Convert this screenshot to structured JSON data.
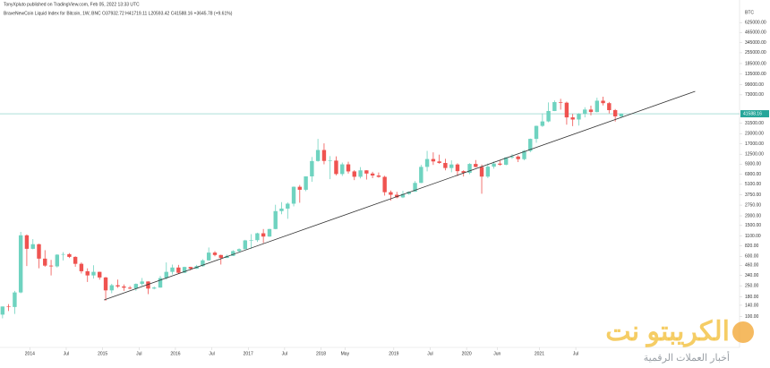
{
  "header": {
    "author_line": "TonyXpluto published on TradingView.com, Feb 05, 2022 13:33 UTC",
    "symbol_line": "BraveNewCoin Liquid Index for Bitcoin, 1W, BNC  O37932.72  H41719.11  L20593.42  C41588.16  +3645.78 (+9.61%)"
  },
  "watermark": {
    "title": "الكريبتو نت",
    "subtitle": "أخبار العملات الرقمية"
  },
  "chart_data": {
    "type": "candlestick",
    "currency": "BTC",
    "log": true,
    "grid": false,
    "up_color": "#6fd3c0",
    "down_color": "#ef5350",
    "last_price": 41588.16,
    "last_price_color": "#26a69a",
    "xlim": [
      2013.59,
      2023.75
    ],
    "ylim": [
      40,
      1100000
    ],
    "xticks": [
      {
        "value": 2014,
        "label": "2014"
      },
      {
        "value": 2014.5,
        "label": "Jul"
      },
      {
        "value": 2015,
        "label": "2015"
      },
      {
        "value": 2015.5,
        "label": "Jul"
      },
      {
        "value": 2016,
        "label": "2016"
      },
      {
        "value": 2016.5,
        "label": "Jul"
      },
      {
        "value": 2017,
        "label": "2017"
      },
      {
        "value": 2017.5,
        "label": "Jul"
      },
      {
        "value": 2018,
        "label": "2018"
      },
      {
        "value": 2018.33,
        "label": "May"
      },
      {
        "value": 2019,
        "label": "2019"
      },
      {
        "value": 2019.5,
        "label": "Jul"
      },
      {
        "value": 2020,
        "label": "2020"
      },
      {
        "value": 2020.42,
        "label": "Jun"
      },
      {
        "value": 2021,
        "label": "2021"
      },
      {
        "value": 2021.5,
        "label": "Jul"
      }
    ],
    "yticks": [
      {
        "value": 625000,
        "label": "625000.00"
      },
      {
        "value": 465000,
        "label": "465000.00"
      },
      {
        "value": 345000,
        "label": "345000.00"
      },
      {
        "value": 255000,
        "label": "255000.00"
      },
      {
        "value": 185000,
        "label": "185000.00"
      },
      {
        "value": 135000,
        "label": "135000.00"
      },
      {
        "value": 99000,
        "label": "99000.00"
      },
      {
        "value": 73000,
        "label": "73000.00"
      },
      {
        "value": 31500,
        "label": "31500.00"
      },
      {
        "value": 23000,
        "label": "23000.00"
      },
      {
        "value": 17000,
        "label": "17000.00"
      },
      {
        "value": 12500,
        "label": "12500.00"
      },
      {
        "value": 9300,
        "label": "9300.00"
      },
      {
        "value": 6900,
        "label": "6900.00"
      },
      {
        "value": 5100,
        "label": "5100.00"
      },
      {
        "value": 3750,
        "label": "3750.00"
      },
      {
        "value": 2750,
        "label": "2750.00"
      },
      {
        "value": 2000,
        "label": "2000.00"
      },
      {
        "value": 1500,
        "label": "1500.00"
      },
      {
        "value": 1100,
        "label": "1100.00"
      },
      {
        "value": 820,
        "label": "820.00"
      },
      {
        "value": 600,
        "label": "600.00"
      },
      {
        "value": 460,
        "label": "460.00"
      },
      {
        "value": 340,
        "label": "340.00"
      },
      {
        "value": 250,
        "label": "250.00"
      },
      {
        "value": 180,
        "label": "180.00"
      },
      {
        "value": 140,
        "label": "140.00"
      },
      {
        "value": 100,
        "label": "100.00"
      }
    ],
    "trendline": {
      "x": [
        2015.02,
        2023.14
      ],
      "y": [
        164,
        81000
      ],
      "color": "#333333"
    },
    "candles": {
      "x": [
        2013.625,
        2013.708,
        2013.792,
        2013.875,
        2013.958,
        2014.042,
        2014.125,
        2014.208,
        2014.292,
        2014.375,
        2014.458,
        2014.542,
        2014.625,
        2014.708,
        2014.792,
        2014.875,
        2014.958,
        2015.042,
        2015.125,
        2015.208,
        2015.292,
        2015.375,
        2015.458,
        2015.542,
        2015.625,
        2015.708,
        2015.792,
        2015.875,
        2015.958,
        2016.042,
        2016.125,
        2016.208,
        2016.292,
        2016.375,
        2016.458,
        2016.542,
        2016.625,
        2016.708,
        2016.792,
        2016.875,
        2016.958,
        2017.042,
        2017.125,
        2017.208,
        2017.292,
        2017.375,
        2017.458,
        2017.542,
        2017.625,
        2017.708,
        2017.792,
        2017.875,
        2017.958,
        2018.042,
        2018.125,
        2018.208,
        2018.292,
        2018.375,
        2018.458,
        2018.542,
        2018.625,
        2018.708,
        2018.792,
        2018.875,
        2018.958,
        2019.042,
        2019.125,
        2019.208,
        2019.292,
        2019.375,
        2019.458,
        2019.542,
        2019.625,
        2019.708,
        2019.792,
        2019.875,
        2019.958,
        2020.042,
        2020.125,
        2020.208,
        2020.292,
        2020.375,
        2020.458,
        2020.542,
        2020.625,
        2020.708,
        2020.792,
        2020.875,
        2020.958,
        2021.042,
        2021.125,
        2021.208,
        2021.292,
        2021.375,
        2021.458,
        2021.542,
        2021.625,
        2021.708,
        2021.792,
        2021.875,
        2021.958,
        2022.042,
        2022.125
      ],
      "open": [
        106,
        135,
        133,
        205,
        1120,
        750,
        860,
        560,
        455,
        445,
        630,
        640,
        590,
        480,
        385,
        340,
        378,
        320,
        218,
        254,
        245,
        236,
        230,
        264,
        284,
        230,
        237,
        314,
        378,
        430,
        368,
        437,
        416,
        448,
        532,
        670,
        624,
        573,
        608,
        700,
        742,
        963,
        970,
        1190,
        1080,
        1350,
        2300,
        2480,
        2870,
        4740,
        4340,
        6460,
        10200,
        14150,
        10230,
        10330,
        6930,
        9240,
        7490,
        6390,
        7730,
        7030,
        6630,
        6370,
        4040,
        3740,
        3460,
        3830,
        4100,
        5320,
        8570,
        10820,
        10080,
        9630,
        8290,
        9200,
        7550,
        7190,
        9350,
        8560,
        6420,
        8630,
        9450,
        9140,
        11350,
        11650,
        10780,
        13800,
        19700,
        28990,
        33110,
        45140,
        58800,
        57750,
        37330,
        35040,
        41460,
        47100,
        43790,
        61300,
        57000,
        46300,
        38480
      ],
      "high": [
        135,
        145,
        215,
        1240,
        1150,
        1000,
        870,
        720,
        540,
        640,
        680,
        660,
        600,
        500,
        420,
        460,
        380,
        325,
        265,
        300,
        260,
        248,
        268,
        315,
        285,
        245,
        335,
        500,
        470,
        465,
        440,
        440,
        465,
        550,
        780,
        700,
        630,
        630,
        720,
        760,
        980,
        1160,
        1210,
        1350,
        1360,
        2780,
        3000,
        2980,
        4780,
        5000,
        6460,
        11500,
        19700,
        17250,
        11800,
        11700,
        9750,
        10000,
        7770,
        8500,
        7750,
        7410,
        7250,
        6580,
        4250,
        4080,
        4210,
        4130,
        5620,
        9100,
        13800,
        13200,
        12330,
        10900,
        10400,
        9530,
        7750,
        9580,
        10500,
        9200,
        9460,
        10070,
        10380,
        11430,
        12470,
        12070,
        14100,
        19900,
        29300,
        41950,
        58350,
        61800,
        64800,
        59600,
        41300,
        42300,
        50500,
        52900,
        67000,
        69000,
        59100,
        47900,
        42100
      ],
      "low": [
        95,
        118,
        108,
        200,
        450,
        740,
        420,
        440,
        340,
        430,
        530,
        570,
        440,
        360,
        280,
        310,
        300,
        160,
        200,
        235,
        215,
        225,
        215,
        250,
        195,
        225,
        236,
        300,
        350,
        355,
        365,
        395,
        412,
        440,
        525,
        600,
        470,
        570,
        605,
        680,
        740,
        750,
        920,
        890,
        1070,
        1340,
        2100,
        1830,
        2650,
        2950,
        4160,
        5500,
        10000,
        9250,
        5950,
        6650,
        6550,
        7030,
        5780,
        6090,
        5880,
        6120,
        6200,
        3650,
        3150,
        3370,
        3390,
        3740,
        4080,
        5290,
        7500,
        9080,
        9400,
        7730,
        7300,
        6530,
        6430,
        6880,
        8450,
        3860,
        6160,
        8130,
        8900,
        8970,
        10880,
        9880,
        10430,
        13230,
        17600,
        28130,
        32300,
        45000,
        47000,
        30000,
        28800,
        29300,
        37330,
        39600,
        43300,
        53250,
        42000,
        32950,
        36600
      ],
      "close": [
        135,
        133,
        205,
        1120,
        750,
        860,
        560,
        455,
        445,
        630,
        640,
        590,
        480,
        385,
        340,
        378,
        320,
        218,
        254,
        245,
        236,
        230,
        264,
        284,
        230,
        237,
        314,
        378,
        430,
        368,
        437,
        416,
        448,
        532,
        670,
        624,
        573,
        608,
        700,
        742,
        963,
        970,
        1190,
        1080,
        1350,
        2300,
        2480,
        2870,
        4740,
        4340,
        6460,
        10200,
        14150,
        10230,
        10330,
        6930,
        9240,
        7490,
        6390,
        7730,
        7030,
        6630,
        6370,
        4040,
        3740,
        3460,
        3830,
        4100,
        5320,
        8570,
        10820,
        10080,
        9630,
        8290,
        9200,
        7550,
        7190,
        9350,
        8560,
        6420,
        8630,
        9450,
        9140,
        11350,
        11650,
        10780,
        13800,
        19700,
        28990,
        33110,
        45140,
        58800,
        57750,
        37330,
        35040,
        41460,
        47100,
        43790,
        61300,
        57000,
        46300,
        38480,
        41588.16
      ]
    }
  }
}
